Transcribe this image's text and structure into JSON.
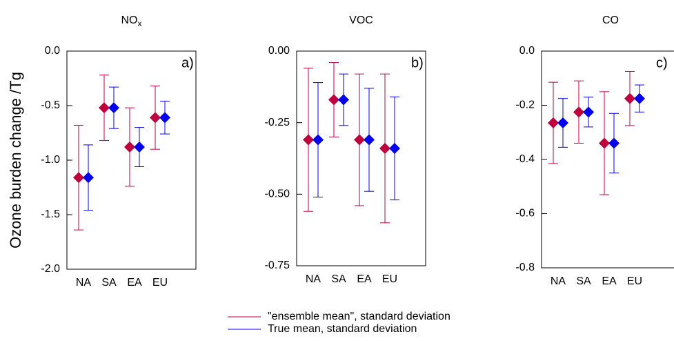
{
  "chart_data": [
    {
      "type": "errorbar",
      "title": "NO",
      "title_subscript": "x",
      "panel_label": "a)",
      "ylabel": "Ozone burden change /Tg",
      "categories": [
        "NA",
        "SA",
        "EA",
        "EU"
      ],
      "series": [
        {
          "name": "\"ensemble mean\", standard deviation",
          "color": "#c0003c",
          "values": [
            -1.16,
            -0.52,
            -0.88,
            -0.61
          ],
          "errors": [
            0.48,
            0.3,
            0.36,
            0.29
          ]
        },
        {
          "name": "True mean, standard deviation",
          "color": "#0000ee",
          "values": [
            -1.16,
            -0.52,
            -0.88,
            -0.61
          ],
          "errors": [
            0.3,
            0.19,
            0.18,
            0.15
          ]
        }
      ],
      "ylim": [
        -2,
        0
      ],
      "yticks": [
        {
          "value": 0,
          "label": "0.0"
        },
        -0.5,
        {
          "value": -1,
          "label": "-1.0"
        },
        -1.5,
        {
          "value": -2,
          "label": "-2.0"
        }
      ]
    },
    {
      "type": "errorbar",
      "title": "VOC",
      "panel_label": "b)",
      "categories": [
        "NA",
        "SA",
        "EA",
        "EU"
      ],
      "series": [
        {
          "color": "#c0003c",
          "values": [
            -0.31,
            -0.17,
            -0.31,
            -0.34
          ],
          "errors": [
            0.25,
            0.13,
            0.23,
            0.26
          ]
        },
        {
          "color": "#0000ee",
          "values": [
            -0.31,
            -0.17,
            -0.31,
            -0.34
          ],
          "errors": [
            0.2,
            0.09,
            0.18,
            0.18
          ]
        }
      ],
      "ylim": [
        -0.75,
        0
      ],
      "yticks": [
        {
          "value": 0,
          "label": "0.00"
        },
        -0.25,
        {
          "value": -0.5,
          "label": "-0.50"
        },
        -0.75
      ]
    },
    {
      "type": "errorbar",
      "title": "CO",
      "panel_label": "c)",
      "categories": [
        "NA",
        "SA",
        "EA",
        "EU"
      ],
      "series": [
        {
          "color": "#c0003c",
          "values": [
            -0.265,
            -0.225,
            -0.34,
            -0.175
          ],
          "errors": [
            0.15,
            0.115,
            0.19,
            0.1
          ]
        },
        {
          "color": "#0000ee",
          "values": [
            -0.265,
            -0.225,
            -0.34,
            -0.175
          ],
          "errors": [
            0.09,
            0.055,
            0.11,
            0.05
          ]
        }
      ],
      "ylim": [
        -0.8,
        0
      ],
      "yticks": [
        {
          "value": 0,
          "label": "0.0"
        },
        -0.2,
        -0.4,
        -0.6,
        -0.8
      ]
    }
  ]
}
